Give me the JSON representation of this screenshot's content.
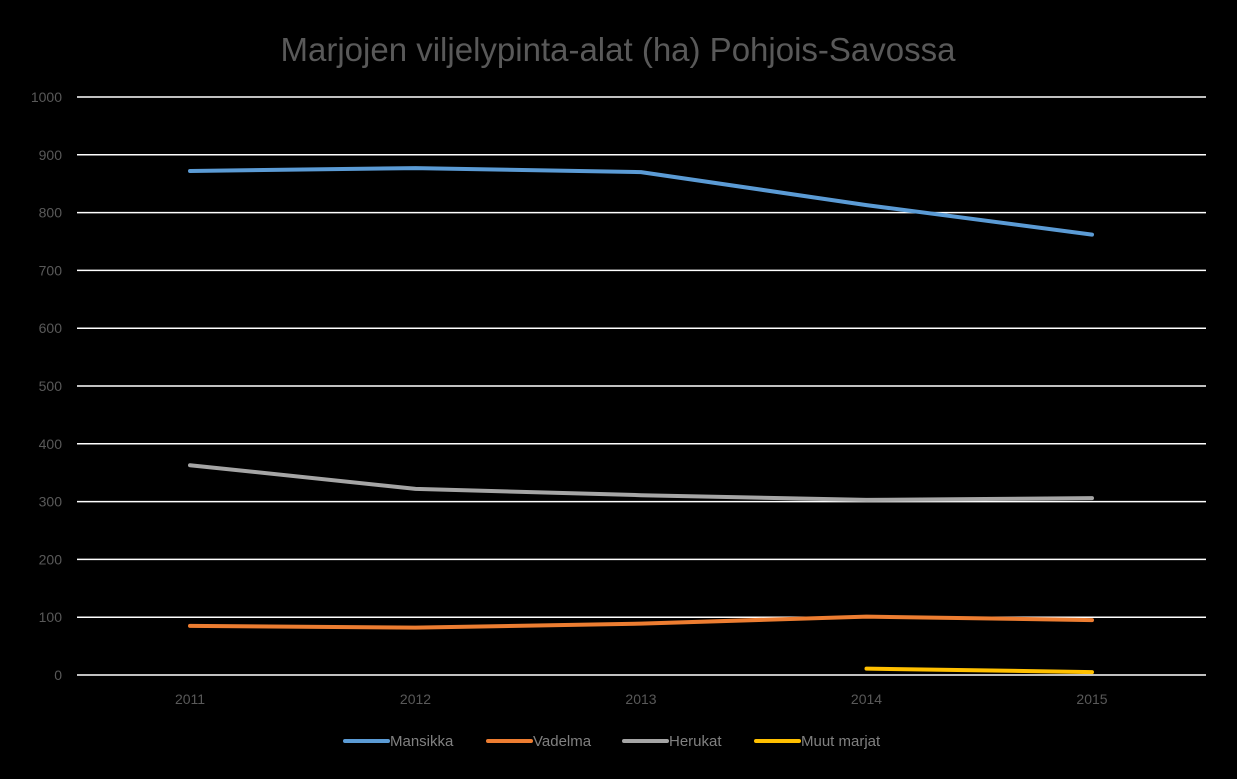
{
  "chart_data": {
    "type": "line",
    "title": "Marjojen viljelypinta-alat (ha) Pohjois-Savossa",
    "xlabel": "",
    "ylabel": "",
    "categories": [
      "2011",
      "2012",
      "2013",
      "2014",
      "2015"
    ],
    "ylim": [
      0,
      1000
    ],
    "yticks": [
      "0",
      "100",
      "200",
      "300",
      "400",
      "500",
      "600",
      "700",
      "800",
      "900",
      "1000"
    ],
    "grid": true,
    "legend": "bottom",
    "series": [
      {
        "name": "Mansikka",
        "color": "#5b9bd5",
        "values": [
          872,
          877,
          870,
          813,
          762
        ]
      },
      {
        "name": "Vadelma",
        "color": "#ed7d31",
        "values": [
          85,
          82,
          89,
          101,
          95
        ]
      },
      {
        "name": "Herukat",
        "color": "#a5a5a5",
        "values": [
          363,
          322,
          311,
          303,
          306
        ]
      },
      {
        "name": "Muut marjat",
        "color": "#ffc000",
        "values": [
          null,
          null,
          null,
          11,
          5
        ]
      }
    ]
  }
}
